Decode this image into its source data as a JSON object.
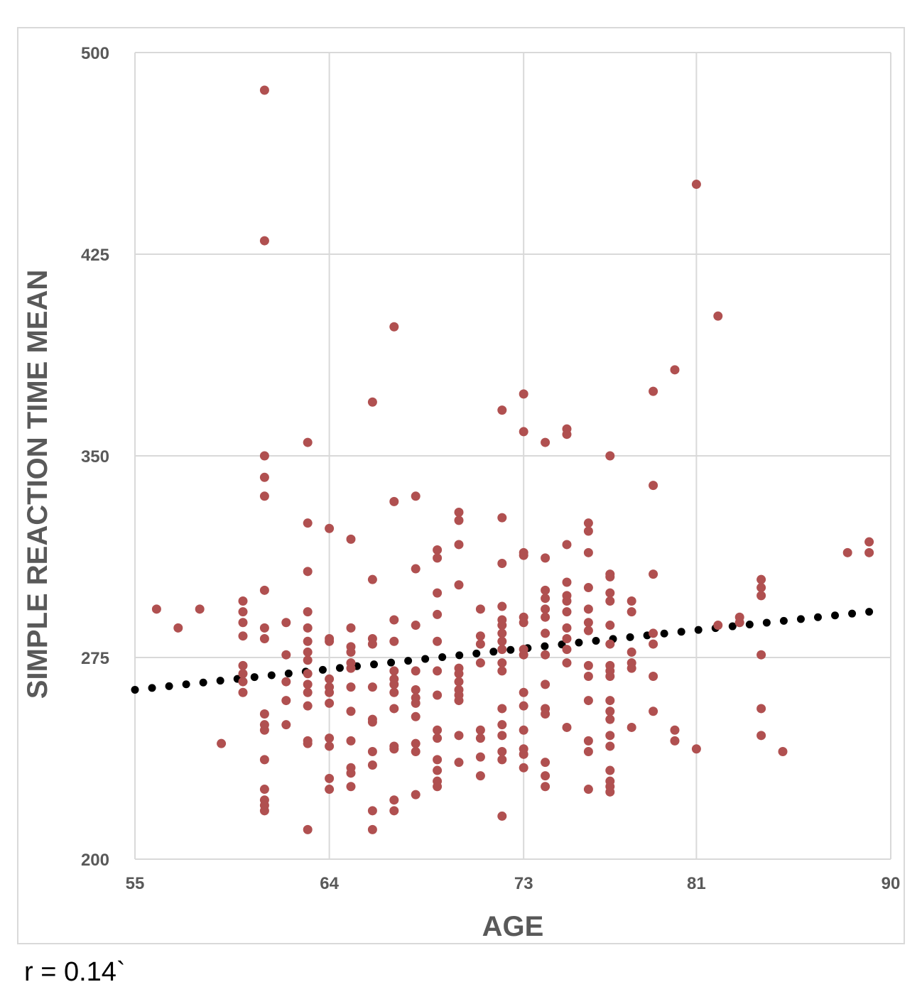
{
  "caption": "r = 0.14`",
  "chart_data": {
    "type": "scatter",
    "xlabel": "AGE",
    "ylabel": "SIMPLE REACTION TIME MEAN",
    "xlim": [
      55,
      90
    ],
    "ylim": [
      200,
      500
    ],
    "xticks": [
      55,
      64,
      73,
      81,
      90
    ],
    "yticks": [
      200,
      275,
      350,
      425,
      500
    ],
    "grid": true,
    "point_color": "#b05050",
    "trendline": {
      "style": "dotted",
      "color": "#000000",
      "points": [
        [
          55,
          263
        ],
        [
          89,
          292
        ]
      ]
    },
    "series": [
      {
        "points": [
          [
            56,
            293
          ],
          [
            57,
            286
          ],
          [
            58,
            293
          ],
          [
            59,
            243
          ],
          [
            60,
            296
          ],
          [
            60,
            292
          ],
          [
            60,
            288
          ],
          [
            60,
            283
          ],
          [
            60,
            272
          ],
          [
            60,
            269
          ],
          [
            60,
            266
          ],
          [
            60,
            262
          ],
          [
            61,
            486
          ],
          [
            61,
            430
          ],
          [
            61,
            350
          ],
          [
            61,
            342
          ],
          [
            61,
            335
          ],
          [
            61,
            300
          ],
          [
            61,
            286
          ],
          [
            61,
            282
          ],
          [
            61,
            254
          ],
          [
            61,
            250
          ],
          [
            61,
            248
          ],
          [
            61,
            237
          ],
          [
            61,
            226
          ],
          [
            61,
            222
          ],
          [
            61,
            220
          ],
          [
            61,
            218
          ],
          [
            62,
            288
          ],
          [
            62,
            276
          ],
          [
            62,
            266
          ],
          [
            62,
            259
          ],
          [
            62,
            250
          ],
          [
            63,
            355
          ],
          [
            63,
            325
          ],
          [
            63,
            307
          ],
          [
            63,
            292
          ],
          [
            63,
            286
          ],
          [
            63,
            281
          ],
          [
            63,
            277
          ],
          [
            63,
            274
          ],
          [
            63,
            269
          ],
          [
            63,
            265
          ],
          [
            63,
            262
          ],
          [
            63,
            257
          ],
          [
            63,
            244
          ],
          [
            63,
            243
          ],
          [
            63,
            211
          ],
          [
            64,
            323
          ],
          [
            64,
            282
          ],
          [
            64,
            281
          ],
          [
            64,
            267
          ],
          [
            64,
            264
          ],
          [
            64,
            262
          ],
          [
            64,
            258
          ],
          [
            64,
            245
          ],
          [
            64,
            242
          ],
          [
            64,
            230
          ],
          [
            64,
            226
          ],
          [
            65,
            319
          ],
          [
            65,
            286
          ],
          [
            65,
            279
          ],
          [
            65,
            277
          ],
          [
            65,
            273
          ],
          [
            65,
            271
          ],
          [
            65,
            264
          ],
          [
            65,
            255
          ],
          [
            65,
            244
          ],
          [
            65,
            234
          ],
          [
            65,
            232
          ],
          [
            65,
            227
          ],
          [
            66,
            370
          ],
          [
            66,
            304
          ],
          [
            66,
            282
          ],
          [
            66,
            280
          ],
          [
            66,
            264
          ],
          [
            66,
            252
          ],
          [
            66,
            251
          ],
          [
            66,
            240
          ],
          [
            66,
            235
          ],
          [
            66,
            218
          ],
          [
            66,
            211
          ],
          [
            67,
            398
          ],
          [
            67,
            333
          ],
          [
            67,
            289
          ],
          [
            67,
            281
          ],
          [
            67,
            270
          ],
          [
            67,
            267
          ],
          [
            67,
            265
          ],
          [
            67,
            262
          ],
          [
            67,
            256
          ],
          [
            67,
            242
          ],
          [
            67,
            241
          ],
          [
            67,
            222
          ],
          [
            67,
            218
          ],
          [
            68,
            335
          ],
          [
            68,
            308
          ],
          [
            68,
            287
          ],
          [
            68,
            270
          ],
          [
            68,
            263
          ],
          [
            68,
            260
          ],
          [
            68,
            258
          ],
          [
            68,
            253
          ],
          [
            68,
            243
          ],
          [
            68,
            240
          ],
          [
            68,
            224
          ],
          [
            69,
            315
          ],
          [
            69,
            312
          ],
          [
            69,
            299
          ],
          [
            69,
            291
          ],
          [
            69,
            281
          ],
          [
            69,
            270
          ],
          [
            69,
            261
          ],
          [
            69,
            248
          ],
          [
            69,
            245
          ],
          [
            69,
            237
          ],
          [
            69,
            233
          ],
          [
            69,
            229
          ],
          [
            69,
            227
          ],
          [
            70,
            329
          ],
          [
            70,
            326
          ],
          [
            70,
            317
          ],
          [
            70,
            302
          ],
          [
            70,
            271
          ],
          [
            70,
            269
          ],
          [
            70,
            266
          ],
          [
            70,
            263
          ],
          [
            70,
            261
          ],
          [
            70,
            259
          ],
          [
            70,
            246
          ],
          [
            70,
            236
          ],
          [
            71,
            293
          ],
          [
            71,
            283
          ],
          [
            71,
            280
          ],
          [
            71,
            273
          ],
          [
            71,
            248
          ],
          [
            71,
            245
          ],
          [
            71,
            238
          ],
          [
            71,
            231
          ],
          [
            72,
            367
          ],
          [
            72,
            327
          ],
          [
            72,
            310
          ],
          [
            72,
            294
          ],
          [
            72,
            289
          ],
          [
            72,
            287
          ],
          [
            72,
            284
          ],
          [
            72,
            281
          ],
          [
            72,
            278
          ],
          [
            72,
            273
          ],
          [
            72,
            270
          ],
          [
            72,
            256
          ],
          [
            72,
            250
          ],
          [
            72,
            246
          ],
          [
            72,
            240
          ],
          [
            72,
            237
          ],
          [
            72,
            216
          ],
          [
            73,
            373
          ],
          [
            73,
            359
          ],
          [
            73,
            314
          ],
          [
            73,
            313
          ],
          [
            73,
            290
          ],
          [
            73,
            288
          ],
          [
            73,
            278
          ],
          [
            73,
            276
          ],
          [
            73,
            262
          ],
          [
            73,
            257
          ],
          [
            73,
            248
          ],
          [
            73,
            241
          ],
          [
            73,
            239
          ],
          [
            73,
            234
          ],
          [
            74,
            355
          ],
          [
            74,
            312
          ],
          [
            74,
            300
          ],
          [
            74,
            297
          ],
          [
            74,
            293
          ],
          [
            74,
            290
          ],
          [
            74,
            284
          ],
          [
            74,
            276
          ],
          [
            74,
            265
          ],
          [
            74,
            256
          ],
          [
            74,
            254
          ],
          [
            74,
            236
          ],
          [
            74,
            231
          ],
          [
            74,
            227
          ],
          [
            75,
            360
          ],
          [
            75,
            358
          ],
          [
            75,
            317
          ],
          [
            75,
            303
          ],
          [
            75,
            298
          ],
          [
            75,
            296
          ],
          [
            75,
            292
          ],
          [
            75,
            286
          ],
          [
            75,
            282
          ],
          [
            75,
            278
          ],
          [
            75,
            273
          ],
          [
            75,
            249
          ],
          [
            76,
            325
          ],
          [
            76,
            322
          ],
          [
            76,
            314
          ],
          [
            76,
            301
          ],
          [
            76,
            293
          ],
          [
            76,
            288
          ],
          [
            76,
            285
          ],
          [
            76,
            272
          ],
          [
            76,
            268
          ],
          [
            76,
            259
          ],
          [
            76,
            244
          ],
          [
            76,
            240
          ],
          [
            76,
            226
          ],
          [
            77,
            350
          ],
          [
            77,
            306
          ],
          [
            77,
            305
          ],
          [
            77,
            299
          ],
          [
            77,
            296
          ],
          [
            77,
            287
          ],
          [
            77,
            280
          ],
          [
            77,
            272
          ],
          [
            77,
            270
          ],
          [
            77,
            268
          ],
          [
            77,
            259
          ],
          [
            77,
            255
          ],
          [
            77,
            252
          ],
          [
            77,
            246
          ],
          [
            77,
            242
          ],
          [
            77,
            233
          ],
          [
            77,
            229
          ],
          [
            77,
            227
          ],
          [
            77,
            225
          ],
          [
            78,
            296
          ],
          [
            78,
            292
          ],
          [
            78,
            277
          ],
          [
            78,
            273
          ],
          [
            78,
            271
          ],
          [
            78,
            249
          ],
          [
            79,
            374
          ],
          [
            79,
            339
          ],
          [
            79,
            306
          ],
          [
            79,
            284
          ],
          [
            79,
            280
          ],
          [
            79,
            268
          ],
          [
            79,
            255
          ],
          [
            80,
            382
          ],
          [
            80,
            248
          ],
          [
            80,
            244
          ],
          [
            81,
            451
          ],
          [
            81,
            241
          ],
          [
            82,
            402
          ],
          [
            82,
            287
          ],
          [
            83,
            290
          ],
          [
            83,
            288
          ],
          [
            84,
            304
          ],
          [
            84,
            301
          ],
          [
            84,
            298
          ],
          [
            84,
            276
          ],
          [
            84,
            256
          ],
          [
            84,
            246
          ],
          [
            85,
            240
          ],
          [
            88,
            314
          ],
          [
            89,
            318
          ],
          [
            89,
            314
          ]
        ]
      }
    ]
  }
}
